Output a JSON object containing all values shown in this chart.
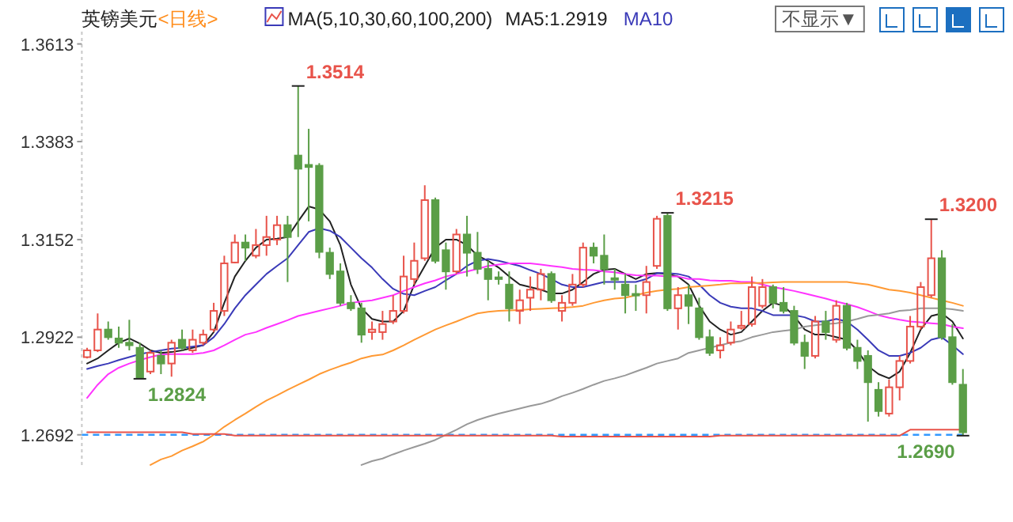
{
  "chart_data": {
    "type": "candlestick",
    "title": "英镑美元",
    "subtitle": "<日线>",
    "legend_title": "MA(5,10,30,60,100,200)",
    "legend": "top",
    "tick_labels": "y",
    "categories": [
      null,
      null,
      null,
      null,
      null,
      null,
      null,
      null,
      null,
      null,
      null,
      null,
      null,
      null,
      null,
      null,
      null,
      null,
      null,
      null,
      null,
      null,
      null,
      null,
      null,
      null,
      null,
      null,
      null,
      null,
      null,
      null,
      null,
      null,
      null,
      null,
      null,
      null,
      null,
      null,
      null,
      null,
      null,
      null,
      null,
      null,
      null,
      null,
      null,
      null,
      null,
      null,
      null,
      null,
      null,
      null,
      null,
      null,
      null,
      null,
      null,
      null,
      null,
      null,
      null,
      null,
      null,
      null,
      null,
      null,
      null,
      null,
      null,
      null,
      null,
      null,
      null,
      null,
      null,
      null,
      null,
      null,
      null,
      null
    ],
    "ohlc": [
      [
        1.2875,
        1.2897,
        1.2872,
        1.2891
      ],
      [
        1.2891,
        1.2978,
        1.2887,
        1.294
      ],
      [
        1.294,
        1.2959,
        1.2916,
        1.2922
      ],
      [
        1.2919,
        1.2947,
        1.2897,
        1.2909
      ],
      [
        1.2909,
        1.2963,
        1.2891,
        1.2903
      ],
      [
        1.2897,
        1.2909,
        1.2824,
        1.2826
      ],
      [
        1.2841,
        1.2891,
        1.2835,
        1.2885
      ],
      [
        1.2878,
        1.2891,
        1.2835,
        1.286
      ],
      [
        1.286,
        1.2916,
        1.2829,
        1.2909
      ],
      [
        1.2916,
        1.294,
        1.2891,
        1.2897
      ],
      [
        1.2891,
        1.294,
        1.2885,
        1.2916
      ],
      [
        1.2909,
        1.294,
        1.2903,
        1.2928
      ],
      [
        1.294,
        1.3003,
        1.2934,
        1.2984
      ],
      [
        1.2984,
        1.3114,
        1.2972,
        1.3096
      ],
      [
        1.3098,
        1.3164,
        1.3096,
        1.3145
      ],
      [
        1.3145,
        1.3164,
        1.3102,
        1.3133
      ],
      [
        1.3114,
        1.3177,
        1.3108,
        1.3139
      ],
      [
        1.3139,
        1.3208,
        1.3114,
        1.3158
      ],
      [
        1.3152,
        1.3208,
        1.3139,
        1.3186
      ],
      [
        1.3186,
        1.3208,
        1.3052,
        1.3158
      ],
      [
        1.335,
        1.3514,
        1.3158,
        1.3319
      ],
      [
        1.3328,
        1.3413,
        1.3195,
        1.3323
      ],
      [
        1.3326,
        1.3332,
        1.3108,
        1.3123
      ],
      [
        1.3121,
        1.3133,
        1.3059,
        1.3071
      ],
      [
        1.3077,
        1.3096,
        1.2996,
        1.3003
      ],
      [
        1.3003,
        1.3021,
        1.2984,
        1.299
      ],
      [
        1.299,
        1.3003,
        1.2909,
        1.2928
      ],
      [
        1.2934,
        1.2959,
        1.2916,
        1.294
      ],
      [
        1.2934,
        1.2984,
        1.2916,
        1.2953
      ],
      [
        1.2959,
        1.3021,
        1.2953,
        1.2984
      ],
      [
        1.2984,
        1.3114,
        1.2978,
        1.3065
      ],
      [
        1.3059,
        1.3145,
        1.3046,
        1.3102
      ],
      [
        1.3108,
        1.328,
        1.3102,
        1.3245
      ],
      [
        1.3245,
        1.3251,
        1.3096,
        1.3102
      ],
      [
        1.3127,
        1.3145,
        1.3034,
        1.3077
      ],
      [
        1.3077,
        1.3177,
        1.3071,
        1.3164
      ],
      [
        1.3164,
        1.3208,
        1.3065,
        1.3121
      ],
      [
        1.3121,
        1.317,
        1.3071,
        1.3083
      ],
      [
        1.3083,
        1.3102,
        1.3009,
        1.3059
      ],
      [
        1.3063,
        1.3077,
        1.3046,
        1.3059
      ],
      [
        1.3046,
        1.3077,
        1.2959,
        1.299
      ],
      [
        1.2984,
        1.3034,
        1.2953,
        1.3009
      ],
      [
        1.3015,
        1.3065,
        1.2984,
        1.3034
      ],
      [
        1.3034,
        1.3083,
        1.3009,
        1.3071
      ],
      [
        1.3071,
        1.3077,
        1.3003,
        1.3009
      ],
      [
        1.2984,
        1.3021,
        1.2959,
        1.3003
      ],
      [
        1.3003,
        1.3071,
        1.2996,
        1.3046
      ],
      [
        1.3046,
        1.3145,
        1.304,
        1.3133
      ],
      [
        1.3133,
        1.3145,
        1.3096,
        1.3114
      ],
      [
        1.3114,
        1.3164,
        1.3046,
        1.3083
      ],
      [
        1.3061,
        1.3083,
        1.3034,
        1.3059
      ],
      [
        1.3046,
        1.3071,
        1.2978,
        1.3021
      ],
      [
        1.3024,
        1.3046,
        1.2984,
        1.3021
      ],
      [
        1.3021,
        1.309,
        1.2978,
        1.3052
      ],
      [
        1.309,
        1.3208,
        1.3083,
        1.3201
      ],
      [
        1.3208,
        1.3215,
        1.2984,
        1.299
      ],
      [
        1.299,
        1.304,
        1.294,
        1.3021
      ],
      [
        1.3021,
        1.3046,
        1.2953,
        1.2996
      ],
      [
        1.299,
        1.3015,
        1.2916,
        1.2922
      ],
      [
        1.2922,
        1.294,
        1.2878,
        1.2885
      ],
      [
        1.2891,
        1.2922,
        1.2872,
        1.2903
      ],
      [
        1.2909,
        1.2959,
        1.2903,
        1.294
      ],
      [
        1.2944,
        1.2984,
        1.294,
        1.2949
      ],
      [
        1.2953,
        1.3065,
        1.2947,
        1.304
      ],
      [
        1.2996,
        1.3059,
        1.299,
        1.304
      ],
      [
        1.304,
        1.3046,
        1.299,
        1.3003
      ],
      [
        1.3003,
        1.304,
        1.2978,
        1.2984
      ],
      [
        1.2984,
        1.2996,
        1.2903,
        1.2909
      ],
      [
        1.2909,
        1.2928,
        1.2847,
        1.2878
      ],
      [
        1.2878,
        1.2972,
        1.2872,
        1.2959
      ],
      [
        1.2959,
        1.2984,
        1.2916,
        1.2934
      ],
      [
        1.2916,
        1.3009,
        1.2909,
        1.2996
      ],
      [
        1.2996,
        1.3003,
        1.2891,
        1.2897
      ],
      [
        1.2897,
        1.2916,
        1.2847,
        1.2866
      ],
      [
        1.2878,
        1.2891,
        1.2723,
        1.2816
      ],
      [
        1.2798,
        1.2816,
        1.2735,
        1.2748
      ],
      [
        1.2742,
        1.2822,
        1.2735,
        1.2804
      ],
      [
        1.2804,
        1.2878,
        1.2773,
        1.2866
      ],
      [
        1.2866,
        1.2972,
        1.286,
        1.2947
      ],
      [
        1.2947,
        1.3052,
        1.294,
        1.304
      ],
      [
        1.3021,
        1.32,
        1.3015,
        1.3108
      ],
      [
        1.3108,
        1.3127,
        1.2916,
        1.2922
      ],
      [
        1.2922,
        1.2953,
        1.281,
        1.2816
      ],
      [
        1.281,
        1.2847,
        1.269,
        1.2698
      ]
    ],
    "series": [
      {
        "type": "line",
        "name": "MA5:1.2919",
        "color": "#222222",
        "values": [
          1.286,
          1.2872,
          1.2891,
          1.2909,
          1.2919,
          1.2907,
          1.2891,
          1.2885,
          1.2887,
          1.2891,
          1.2897,
          1.2903,
          1.2934,
          1.3003,
          1.3065,
          1.3102,
          1.3133,
          1.3152,
          1.3154,
          1.3158,
          1.3195,
          1.323,
          1.3223,
          1.3195,
          1.3139,
          1.3046,
          1.299,
          1.2965,
          1.2959,
          1.2959,
          1.2984,
          1.3046,
          1.309,
          1.3133,
          1.3152,
          1.3152,
          1.3139,
          1.3114,
          1.3102,
          1.3086,
          1.3065,
          1.3046,
          1.304,
          1.3034,
          1.3025,
          1.3025,
          1.3034,
          1.3052,
          1.3071,
          1.3081,
          1.3083,
          1.3071,
          1.3059,
          1.3071,
          1.3073,
          1.3071,
          1.3065,
          1.3046,
          1.2996,
          1.2959,
          1.294,
          1.2928,
          1.2934,
          1.2959,
          1.2984,
          1.3003,
          1.2996,
          1.2972,
          1.294,
          1.2928,
          1.2928,
          1.2922,
          1.2916,
          1.2891,
          1.2854,
          1.2835,
          1.2825,
          1.2841,
          1.2885,
          1.294,
          1.2972,
          1.2978,
          1.2959,
          1.2919
        ]
      },
      {
        "type": "line",
        "name": "MA10",
        "color": "#3a3ab8",
        "values": [
          1.2847,
          1.2854,
          1.286,
          1.2868,
          1.2875,
          1.2882,
          1.2887,
          1.2891,
          1.2895,
          1.2897,
          1.29,
          1.2903,
          1.2922,
          1.2953,
          1.299,
          1.3021,
          1.3046,
          1.3071,
          1.309,
          1.3108,
          1.3139,
          1.317,
          1.3179,
          1.3173,
          1.3158,
          1.3133,
          1.3108,
          1.3086,
          1.3059,
          1.3036,
          1.3024,
          1.3021,
          1.3031,
          1.304,
          1.3056,
          1.3071,
          1.309,
          1.3102,
          1.3106,
          1.3102,
          1.3096,
          1.309,
          1.308,
          1.3071,
          1.3059,
          1.3046,
          1.304,
          1.304,
          1.3046,
          1.3052,
          1.3052,
          1.3052,
          1.3052,
          1.3059,
          1.3073,
          1.3073,
          1.3071,
          1.3065,
          1.3046,
          1.3021,
          1.3003,
          1.2994,
          1.299,
          1.299,
          1.2984,
          1.2974,
          1.2974,
          1.2974,
          1.2969,
          1.2959,
          1.2959,
          1.2965,
          1.2959,
          1.294,
          1.2916,
          1.2891,
          1.2878,
          1.2878,
          1.2885,
          1.2897,
          1.2916,
          1.2922,
          1.2903,
          1.2882
        ]
      },
      {
        "type": "line",
        "color": "#ff33ff",
        "values": [
          1.2779,
          1.281,
          1.2835,
          1.285,
          1.286,
          1.2868,
          1.2875,
          1.2881,
          1.2882,
          1.2882,
          1.2882,
          1.2885,
          1.2891,
          1.2903,
          1.2916,
          1.2928,
          1.2934,
          1.2944,
          1.2953,
          1.2962,
          1.2972,
          1.2978,
          1.2984,
          1.299,
          1.2996,
          1.3003,
          1.3006,
          1.3009,
          1.3015,
          1.3021,
          1.3031,
          1.304,
          1.3049,
          1.3056,
          1.3065,
          1.3071,
          1.3077,
          1.3083,
          1.309,
          1.3093,
          1.3096,
          1.3096,
          1.3096,
          1.3093,
          1.309,
          1.3087,
          1.3083,
          1.3081,
          1.308,
          1.3077,
          1.3075,
          1.3071,
          1.3068,
          1.3067,
          1.3067,
          1.3065,
          1.3065,
          1.3059,
          1.3059,
          1.3056,
          1.3055,
          1.3055,
          1.3052,
          1.3052,
          1.3046,
          1.304,
          1.3036,
          1.3031,
          1.3025,
          1.3019,
          1.3013,
          1.3006,
          1.3,
          1.2993,
          1.2984,
          1.2974,
          1.2968,
          1.2963,
          1.2959,
          1.2957,
          1.2955,
          1.2953,
          1.2947,
          1.2943
        ]
      },
      {
        "type": "line",
        "color": "#ff9933",
        "values": [
          null,
          null,
          null,
          null,
          null,
          null,
          1.2621,
          1.2634,
          1.2642,
          1.2655,
          1.2665,
          1.2676,
          1.2692,
          1.2711,
          1.2727,
          1.2742,
          1.2758,
          1.2773,
          1.2785,
          1.2798,
          1.281,
          1.2822,
          1.2835,
          1.2845,
          1.2854,
          1.2862,
          1.2872,
          1.2878,
          1.2881,
          1.2891,
          1.2903,
          1.2916,
          1.2928,
          1.294,
          1.295,
          1.2959,
          1.2969,
          1.2978,
          1.2982,
          1.2984,
          1.2985,
          1.2986,
          1.2988,
          1.2989,
          1.299,
          1.2991,
          1.2993,
          1.2996,
          1.3003,
          1.3009,
          1.3013,
          1.3015,
          1.3021,
          1.3027,
          1.3031,
          1.3034,
          1.3036,
          1.304,
          1.3042,
          1.3044,
          1.3046,
          1.3049,
          1.3049,
          1.305,
          1.305,
          1.3051,
          1.3052,
          1.3052,
          1.3052,
          1.3052,
          1.3052,
          1.3052,
          1.3052,
          1.3049,
          1.3046,
          1.304,
          1.3034,
          1.3031,
          1.3027,
          1.3021,
          1.3015,
          1.3009,
          1.3003,
          1.2996
        ]
      },
      {
        "type": "line",
        "color": "#999999",
        "values": [
          null,
          null,
          null,
          null,
          null,
          null,
          null,
          null,
          null,
          null,
          null,
          null,
          null,
          null,
          null,
          null,
          null,
          null,
          null,
          null,
          null,
          null,
          null,
          null,
          null,
          null,
          1.2621,
          1.263,
          1.2636,
          1.2646,
          1.2655,
          1.2663,
          1.2671,
          1.268,
          1.2692,
          1.2704,
          1.2717,
          1.2727,
          1.2735,
          1.2742,
          1.2748,
          1.2754,
          1.276,
          1.2765,
          1.2773,
          1.2783,
          1.2791,
          1.28,
          1.281,
          1.2819,
          1.2825,
          1.2832,
          1.2841,
          1.285,
          1.286,
          1.2866,
          1.2872,
          1.2885,
          1.2891,
          1.2897,
          1.2903,
          1.2909,
          1.2913,
          1.2922,
          1.2928,
          1.2934,
          1.2937,
          1.294,
          1.2947,
          1.295,
          1.2953,
          1.2955,
          1.2959,
          1.2965,
          1.2972,
          1.2975,
          1.2978,
          1.2984,
          1.2986,
          1.299,
          1.299,
          1.299,
          1.2988,
          1.2984
        ]
      },
      {
        "type": "line",
        "color": "#e8534a",
        "values": [
          1.2698,
          1.2698,
          1.2698,
          1.2698,
          1.2698,
          1.2698,
          1.2698,
          1.2698,
          1.2698,
          1.2698,
          1.2694,
          1.2694,
          1.2694,
          1.2694,
          1.269,
          1.269,
          1.269,
          1.269,
          1.269,
          1.269,
          1.269,
          1.269,
          1.269,
          1.269,
          1.269,
          1.269,
          1.269,
          1.269,
          1.269,
          1.269,
          1.269,
          1.269,
          1.269,
          1.269,
          1.269,
          1.269,
          1.269,
          1.269,
          1.269,
          1.269,
          1.269,
          1.269,
          1.269,
          1.269,
          1.269,
          1.2688,
          1.2688,
          1.2688,
          1.2688,
          1.2688,
          1.2688,
          1.2688,
          1.2688,
          1.2688,
          1.2688,
          1.2688,
          1.2688,
          1.2688,
          1.2688,
          1.2688,
          1.269,
          1.269,
          1.269,
          1.269,
          1.269,
          1.269,
          1.269,
          1.269,
          1.269,
          1.269,
          1.269,
          1.269,
          1.269,
          1.269,
          1.269,
          1.269,
          1.269,
          1.269,
          1.2704,
          1.2704,
          1.2704,
          1.2704,
          1.2704,
          1.2704
        ]
      }
    ],
    "ylim": [
      1.2617,
      1.3642
    ],
    "yticks": [
      1.3613,
      1.3383,
      1.3152,
      1.2922,
      1.2692
    ],
    "ref_lines": [
      {
        "axis": "y",
        "value": 1.2692,
        "color": "#3399ff",
        "line_style": "dashed"
      }
    ],
    "annotations": [
      "1.3514",
      {
        "text": "1.2824",
        "y": 1.2824
      },
      "1.3215",
      "1.3200",
      {
        "text": "1.2690",
        "y": 1.269
      },
      "不显示▼"
    ]
  }
}
